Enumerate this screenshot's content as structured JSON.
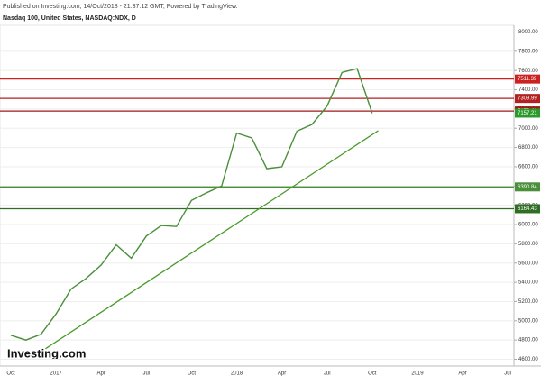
{
  "chart_data": {
    "type": "line",
    "header": "Published on Investing.com, 14/Oct/2018 - 21:37:12 GMT, Powered by TradingView.",
    "title": "Nasdaq 100, United States, NASDAQ:NDX, D",
    "logo": "Investing.com",
    "categories": [
      "Oct",
      null,
      null,
      "2017",
      null,
      null,
      "Apr",
      null,
      null,
      "Jul",
      null,
      null,
      "Oct",
      null,
      null,
      "2018",
      null,
      null,
      "Apr",
      null,
      null,
      "Jul",
      null,
      null,
      "Oct",
      null,
      null,
      "2019",
      null,
      null,
      "Apr",
      null,
      null,
      "Jul"
    ],
    "series": [
      {
        "name": "NASDAQ:NDX",
        "color": "#4a8f3a",
        "values": [
          4850,
          4800,
          4860,
          5070,
          5330,
          5440,
          5580,
          5790,
          5650,
          5880,
          5990,
          5980,
          6250,
          6330,
          6400,
          6950,
          6900,
          6580,
          6600,
          6970,
          7040,
          7230,
          7580,
          7620,
          7157.21,
          null,
          null,
          null,
          null,
          null,
          null,
          null,
          null,
          null
        ]
      }
    ],
    "ylim": [
      4530,
      8070
    ],
    "yticks": [
      {
        "value": 4600,
        "label": "4600.00"
      },
      {
        "value": 4800,
        "label": "4800.00"
      },
      {
        "value": 5000,
        "label": "5000.00"
      },
      {
        "value": 5200,
        "label": "5200.00"
      },
      {
        "value": 5400,
        "label": "5400.00"
      },
      {
        "value": 5600,
        "label": "5600.00"
      },
      {
        "value": 5800,
        "label": "5800.00"
      },
      {
        "value": 6000,
        "label": "6000.00"
      },
      {
        "value": 6200,
        "label": "6200.00"
      },
      {
        "value": 6400,
        "label": "6400.00"
      },
      {
        "value": 6600,
        "label": "6600.00"
      },
      {
        "value": 6800,
        "label": "6800.00"
      },
      {
        "value": 7000,
        "label": "7000.00"
      },
      {
        "value": 7200,
        "label": "7200.00"
      },
      {
        "value": 7400,
        "label": "7400.00"
      },
      {
        "value": 7600,
        "label": "7600.00"
      },
      {
        "value": 7800,
        "label": "7800.00"
      },
      {
        "value": 8000,
        "label": "8000.00"
      }
    ],
    "grid": true,
    "levels": [
      {
        "value": 7511.39,
        "color": "#cc2222"
      },
      {
        "value": 7309.99,
        "color": "#b22222"
      },
      {
        "value": 7179.41,
        "color": "#a01818"
      },
      {
        "value": 6390.84,
        "color": "#4a8f3a"
      },
      {
        "value": 6164.43,
        "color": "#2f6e23"
      }
    ],
    "trendline": {
      "x": [
        2.3,
        24.4
      ],
      "y": [
        4710,
        6975
      ],
      "color": "#4a9a2a"
    }
  }
}
